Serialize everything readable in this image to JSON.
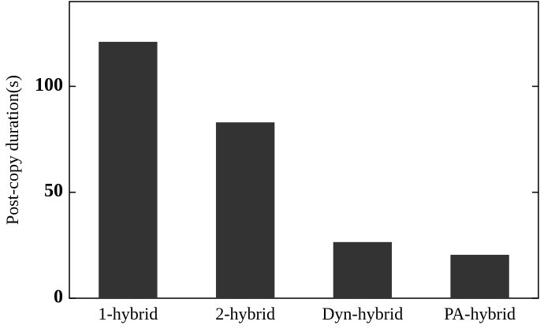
{
  "chart_data": {
    "type": "bar",
    "y_label": "Post-copy duration(s)",
    "categories": [
      "1-hybrid",
      "2-hybrid",
      "Dyn-hybrid",
      "PA-hybrid"
    ],
    "values": [
      121,
      83,
      26.5,
      20.5
    ],
    "color": "#333333",
    "ylim": [
      0,
      140
    ],
    "yticks": [
      0,
      50,
      100
    ],
    "grid": false
  }
}
